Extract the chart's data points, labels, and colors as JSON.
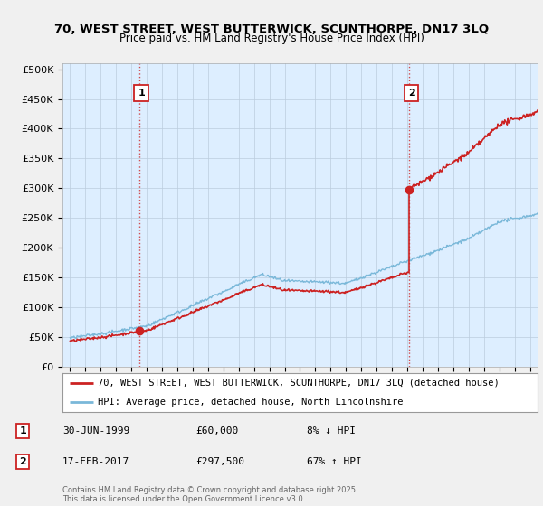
{
  "title1": "70, WEST STREET, WEST BUTTERWICK, SCUNTHORPE, DN17 3LQ",
  "title2": "Price paid vs. HM Land Registry's House Price Index (HPI)",
  "ylabel_ticks": [
    "£0",
    "£50K",
    "£100K",
    "£150K",
    "£200K",
    "£250K",
    "£300K",
    "£350K",
    "£400K",
    "£450K",
    "£500K"
  ],
  "ytick_values": [
    0,
    50000,
    100000,
    150000,
    200000,
    250000,
    300000,
    350000,
    400000,
    450000,
    500000
  ],
  "ylim": [
    0,
    510000
  ],
  "xlim_start": 1994.5,
  "xlim_end": 2025.5,
  "xtick_years": [
    1995,
    1996,
    1997,
    1998,
    1999,
    2000,
    2001,
    2002,
    2003,
    2004,
    2005,
    2006,
    2007,
    2008,
    2009,
    2010,
    2011,
    2012,
    2013,
    2014,
    2015,
    2016,
    2017,
    2018,
    2019,
    2020,
    2021,
    2022,
    2023,
    2024,
    2025
  ],
  "sale1_x": 1999.5,
  "sale1_y": 60000,
  "sale1_label": "1",
  "sale2_x": 2017.12,
  "sale2_y": 297500,
  "sale2_label": "2",
  "hpi_line_color": "#7ab8d9",
  "price_line_color": "#cc2222",
  "vline_color": "#cc2222",
  "background_color": "#f0f0f0",
  "plot_bg_color": "#ddeeff",
  "legend_line1": "70, WEST STREET, WEST BUTTERWICK, SCUNTHORPE, DN17 3LQ (detached house)",
  "legend_line2": "HPI: Average price, detached house, North Lincolnshire",
  "annotation1_date": "30-JUN-1999",
  "annotation1_price": "£60,000",
  "annotation1_hpi": "8% ↓ HPI",
  "annotation2_date": "17-FEB-2017",
  "annotation2_price": "£297,500",
  "annotation2_hpi": "67% ↑ HPI",
  "footer": "Contains HM Land Registry data © Crown copyright and database right 2025.\nThis data is licensed under the Open Government Licence v3.0."
}
